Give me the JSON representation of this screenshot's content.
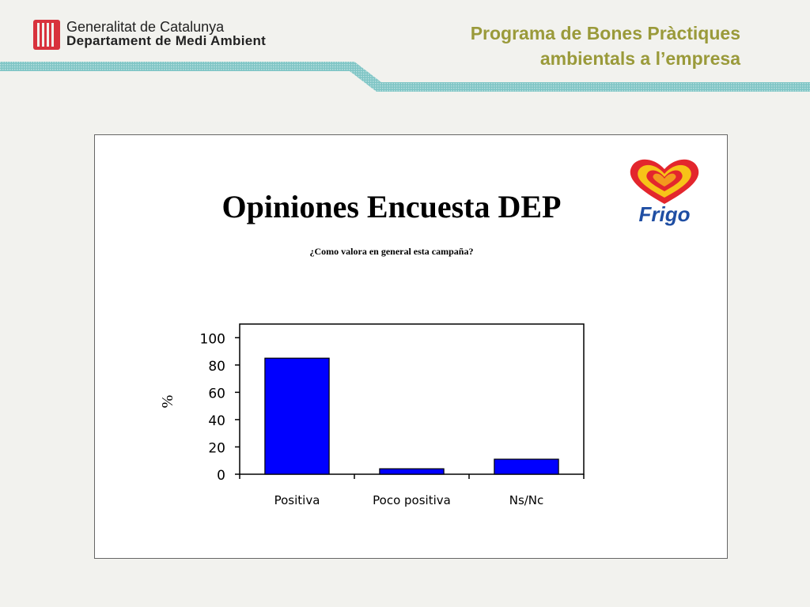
{
  "header": {
    "org_line1": "Generalitat de Catalunya",
    "org_line2": "Departament de Medi Ambient",
    "program_line1": "Programa de Bones Pràctiques",
    "program_line2": "ambientals a l’empresa",
    "logo_icon": "catalonia-flag-icon",
    "accent_color": "#9a9a3a"
  },
  "brand": {
    "name": "Frigo",
    "icon": "frigo-heart-logo-icon"
  },
  "chart_data": {
    "type": "bar",
    "title": "Opiniones Encuesta DEP",
    "subtitle": "¿Como valora en general esta campaña?",
    "categories": [
      "Positiva",
      "Poco positiva",
      "Ns/Nc"
    ],
    "values": [
      85,
      4,
      11
    ],
    "xlabel": "",
    "ylabel": "%",
    "ylim": [
      0,
      110
    ],
    "yticks": [
      0,
      20,
      40,
      60,
      80,
      100
    ],
    "bar_color": "#0000ff",
    "grid": false,
    "legend": "none"
  }
}
